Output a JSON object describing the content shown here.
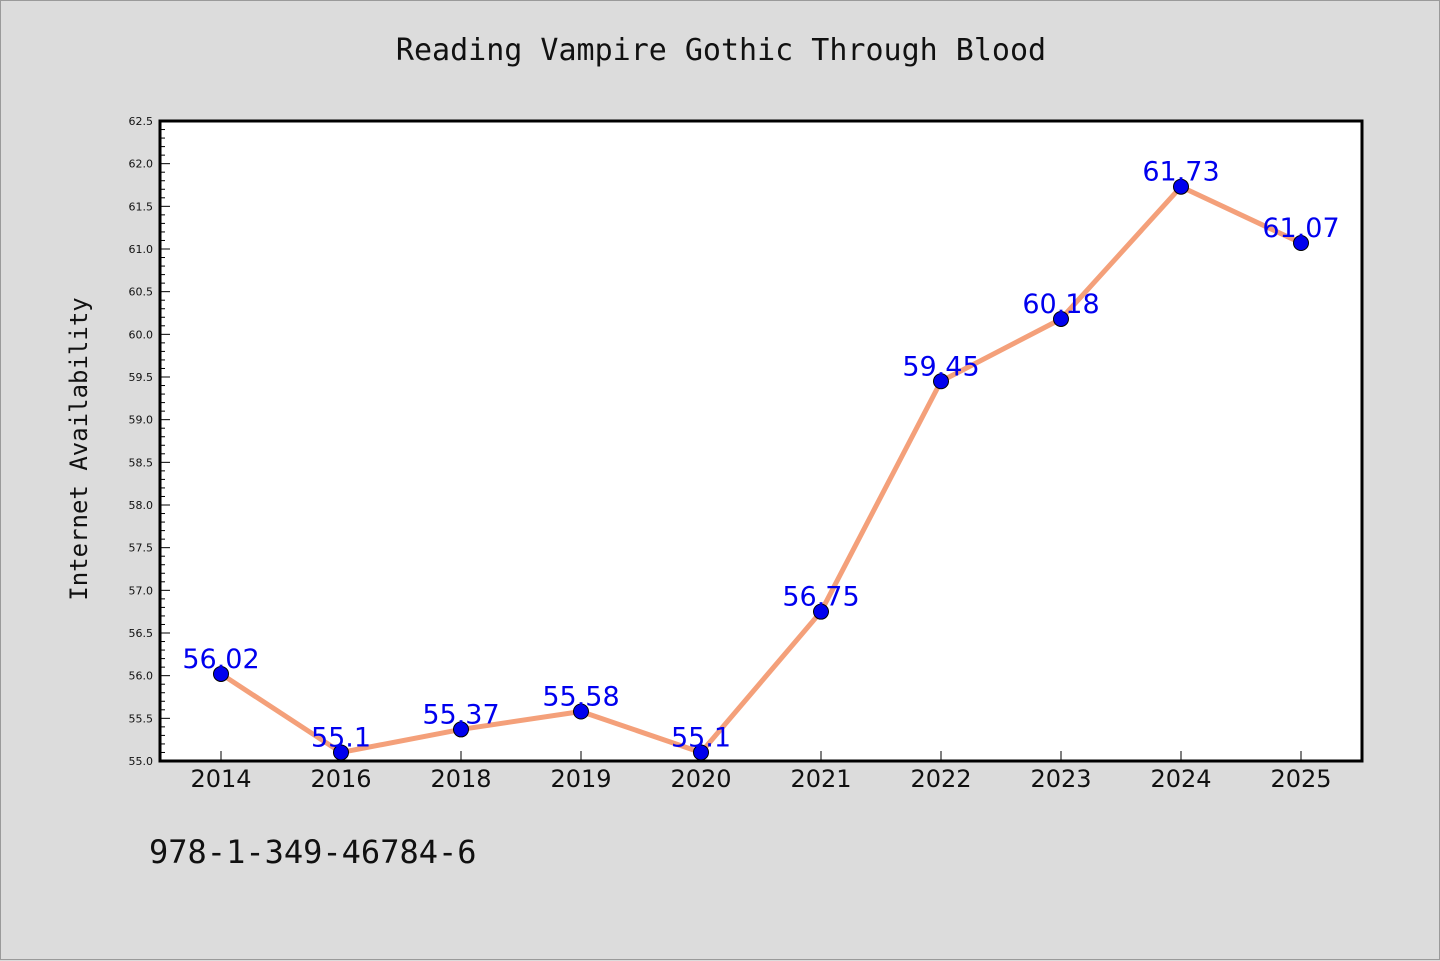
{
  "chart_data": {
    "type": "line",
    "title": "Reading Vampire Gothic Through Blood",
    "xlabel": "",
    "ylabel": "Internet Availability",
    "categories": [
      "2014",
      "2016",
      "2018",
      "2019",
      "2020",
      "2021",
      "2022",
      "2023",
      "2024",
      "2025"
    ],
    "series": [
      {
        "values": [
          56.02,
          55.1,
          55.37,
          55.58,
          55.1,
          56.75,
          59.45,
          60.18,
          61.73,
          61.07
        ],
        "data_labels": [
          "56.02",
          "55.1",
          "55.37",
          "55.58",
          "55.1",
          "56.75",
          "59.45",
          "60.18",
          "61.73",
          "61.07"
        ]
      }
    ],
    "ylim": [
      55.0,
      62.5
    ],
    "yticks": [
      "55.0",
      "55.5",
      "56.0",
      "56.5",
      "57.0",
      "57.5",
      "58.0",
      "58.5",
      "59.0",
      "59.5",
      "60.0",
      "60.5",
      "61.0",
      "61.5",
      "62.0",
      "62.5"
    ],
    "grid": false,
    "legend": "none"
  },
  "footer": {
    "isbn": "978-1-349-46784-6"
  },
  "colors": {
    "background": "#dcdcdc",
    "plot_area": "#ffffff",
    "line": "#f4a07a",
    "marker": "#0000ee",
    "data_label": "#0000ee",
    "text": "#111111"
  }
}
